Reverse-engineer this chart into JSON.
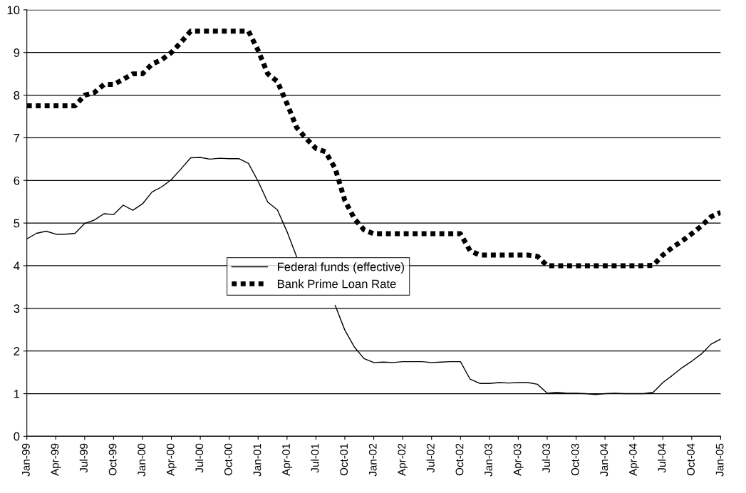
{
  "chart_data": {
    "type": "line",
    "categories": [
      "Jan-99",
      null,
      null,
      "Apr-99",
      null,
      null,
      "Jul-99",
      null,
      null,
      "Oct-99",
      null,
      null,
      "Jan-00",
      null,
      null,
      "Apr-00",
      null,
      null,
      "Jul-00",
      null,
      null,
      "Oct-00",
      null,
      null,
      "Jan-01",
      null,
      null,
      "Apr-01",
      null,
      null,
      "Jul-01",
      null,
      null,
      "Oct-01",
      null,
      null,
      "Jan-02",
      null,
      null,
      "Apr-02",
      null,
      null,
      "Jul-02",
      null,
      null,
      "Oct-02",
      null,
      null,
      "Jan-03",
      null,
      null,
      "Apr-03",
      null,
      null,
      "Jul-03",
      null,
      null,
      "Oct-03",
      null,
      null,
      "Jan-04",
      null,
      null,
      "Apr-04",
      null,
      null,
      "Jul-04",
      null,
      null,
      "Oct-04",
      null,
      null,
      "Jan-05"
    ],
    "series": [
      {
        "name": "Federal funds (effective)",
        "color": "#000000",
        "line_style": "solid",
        "values": [
          4.63,
          4.76,
          4.81,
          4.74,
          4.74,
          4.76,
          4.99,
          5.07,
          5.22,
          5.2,
          5.42,
          5.3,
          5.45,
          5.73,
          5.85,
          6.02,
          6.27,
          6.53,
          6.54,
          6.5,
          6.52,
          6.51,
          6.51,
          6.4,
          5.98,
          5.49,
          5.31,
          4.8,
          4.21,
          null,
          null,
          null,
          3.07,
          2.49,
          2.09,
          1.82,
          1.73,
          1.74,
          1.73,
          1.75,
          1.75,
          1.75,
          1.73,
          1.74,
          1.75,
          1.75,
          1.34,
          1.24,
          1.24,
          1.26,
          1.25,
          1.26,
          1.26,
          1.22,
          1.01,
          1.03,
          1.01,
          1.01,
          1.0,
          0.98,
          1.0,
          1.01,
          1.0,
          1.0,
          1.0,
          1.03,
          1.26,
          1.43,
          1.61,
          1.76,
          1.93,
          2.16,
          2.28
        ]
      },
      {
        "name": "Bank Prime Loan Rate",
        "color": "#000000",
        "line_style": "dashed",
        "values": [
          7.75,
          7.75,
          7.75,
          7.75,
          7.75,
          7.75,
          8.0,
          8.06,
          8.25,
          8.25,
          8.37,
          8.5,
          8.5,
          8.73,
          8.83,
          9.0,
          9.24,
          9.5,
          9.5,
          9.5,
          9.5,
          9.5,
          9.5,
          9.5,
          9.05,
          8.5,
          8.32,
          7.8,
          7.24,
          6.98,
          6.75,
          6.67,
          6.28,
          5.53,
          5.1,
          4.84,
          4.75,
          4.75,
          4.75,
          4.75,
          4.75,
          4.75,
          4.75,
          4.75,
          4.75,
          4.75,
          4.35,
          4.25,
          4.25,
          4.25,
          4.25,
          4.25,
          4.25,
          4.22,
          4.0,
          4.0,
          4.0,
          4.0,
          4.0,
          4.0,
          4.0,
          4.0,
          4.0,
          4.0,
          4.0,
          4.01,
          4.25,
          4.43,
          4.58,
          4.75,
          4.93,
          5.15,
          5.25
        ]
      }
    ],
    "ylim": [
      0,
      10
    ],
    "yticks": [
      0,
      1,
      2,
      3,
      4,
      5,
      6,
      7,
      8,
      9,
      10
    ],
    "grid": "y",
    "legend": "center",
    "marker": "none"
  }
}
